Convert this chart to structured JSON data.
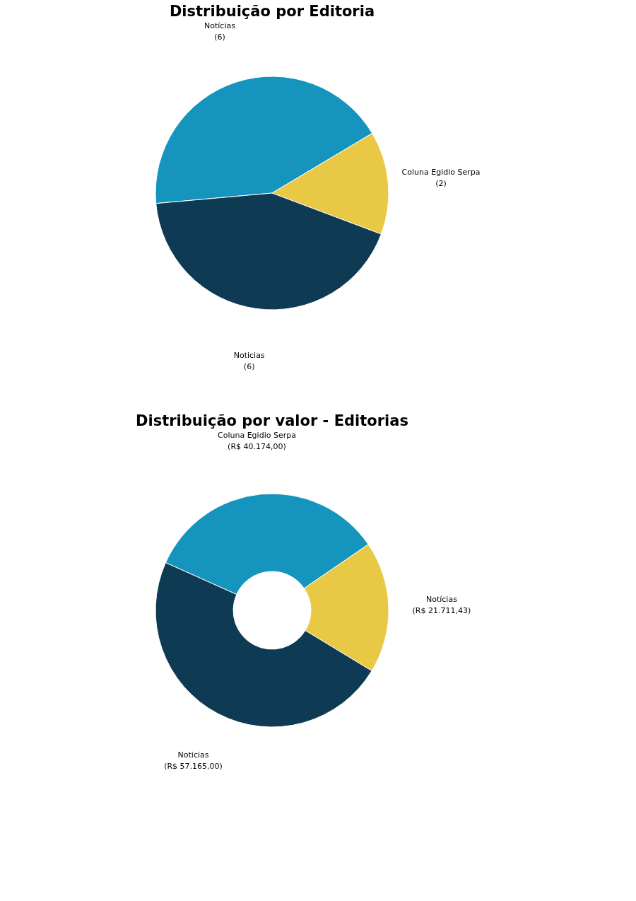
{
  "chart_data": [
    {
      "type": "pie",
      "title": "Distribuição por Editoria",
      "categories": [
        "Notícias",
        "Coluna Egidio Serpa",
        "Noticias"
      ],
      "values": [
        6,
        2,
        6
      ],
      "value_labels": [
        "(6)",
        "(2)",
        "(6)"
      ],
      "colors": [
        "#1595bd",
        "#e8c844",
        "#0e3b53"
      ]
    },
    {
      "type": "donut",
      "title": "Distribuição por valor - Editorias",
      "categories": [
        "Coluna Egidio Serpa",
        "Notícias",
        "Noticias"
      ],
      "values": [
        40174,
        21711.43,
        57165
      ],
      "value_labels": [
        "(R$ 40.174,00)",
        "(R$ 21.711,43)",
        "(R$ 57.165,00)"
      ],
      "colors": [
        "#1595bd",
        "#e8c844",
        "#0e3b53"
      ]
    }
  ]
}
